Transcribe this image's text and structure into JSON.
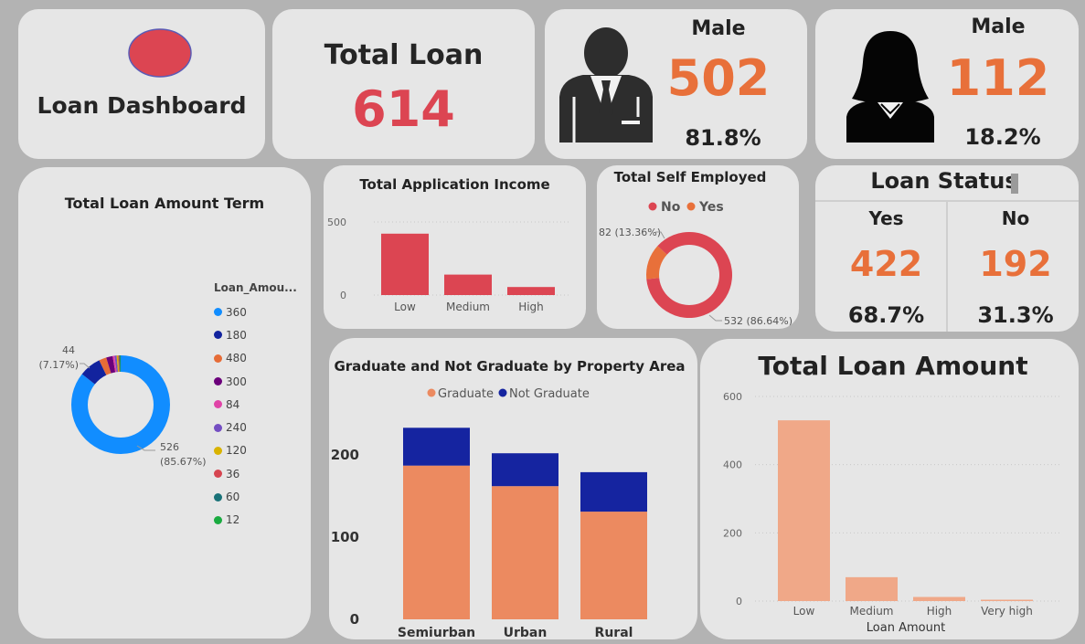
{
  "header": {
    "title": "Loan Dashboard",
    "logo_color": "#dc4552",
    "logo_border": "#5b5bb5"
  },
  "total_loan": {
    "label": "Total Loan",
    "value": "614"
  },
  "gender_male": {
    "label": "Male",
    "count": "502",
    "percent": "81.8%",
    "icon": "man-silhouette-icon"
  },
  "gender_female": {
    "label": "Male",
    "count": "112",
    "percent": "18.2%",
    "icon": "woman-silhouette-icon"
  },
  "loan_status": {
    "title": "Loan Status",
    "yes_label": "Yes",
    "yes_count": "422",
    "yes_percent": "68.7%",
    "no_label": "No",
    "no_count": "192",
    "no_percent": "31.3%"
  },
  "colors": {
    "red": "#dc4552",
    "orange": "#e8703a",
    "salmon": "#f0a888",
    "navy": "#1524a0",
    "graduate": "#ec8a60",
    "blue": "#118dff"
  },
  "chart_data": [
    {
      "id": "term",
      "type": "pie",
      "title": "Total Loan Amount Term",
      "legend_title": "Loan_Amou...",
      "legend_position": "right",
      "slices": [
        {
          "label": "360",
          "value": 526,
          "color": "#118dff"
        },
        {
          "label": "180",
          "value": 44,
          "color": "#12239e"
        },
        {
          "label": "480",
          "value": 15,
          "color": "#e66c37"
        },
        {
          "label": "300",
          "value": 13,
          "color": "#6b007b"
        },
        {
          "label": "84",
          "value": 4,
          "color": "#e044a7"
        },
        {
          "label": "240",
          "value": 4,
          "color": "#744ec2"
        },
        {
          "label": "120",
          "value": 3,
          "color": "#d9b300"
        },
        {
          "label": "36",
          "value": 2,
          "color": "#d64550"
        },
        {
          "label": "60",
          "value": 2,
          "color": "#197278"
        },
        {
          "label": "12",
          "value": 1,
          "color": "#1aab40"
        }
      ],
      "annotations": [
        {
          "line1": "44",
          "line2": "(7.17%)"
        },
        {
          "line1": "526",
          "line2": "(85.67%)"
        }
      ]
    },
    {
      "id": "income",
      "type": "bar",
      "title": "Total Application Income",
      "categories": [
        "Low",
        "Medium",
        "High"
      ],
      "values": [
        420,
        140,
        55
      ],
      "ylim": [
        0,
        500
      ],
      "yticks": [
        "0",
        "500"
      ],
      "color": "#dc4552"
    },
    {
      "id": "self",
      "type": "pie",
      "title": "Total Self Employed",
      "legend_position": "top",
      "slices": [
        {
          "label": "No",
          "value": 532,
          "color": "#dc4552"
        },
        {
          "label": "Yes",
          "value": 82,
          "color": "#e8703a"
        }
      ],
      "annotations": [
        {
          "text": "82 (13.36%)"
        },
        {
          "text": "532 (86.64%)"
        }
      ]
    },
    {
      "id": "grad",
      "type": "bar",
      "stacked": true,
      "title": "Graduate and Not Graduate by Property Area",
      "categories": [
        "Semiurban",
        "Urban",
        "Rural"
      ],
      "series": [
        {
          "name": "Graduate",
          "values": [
            187,
            162,
            131
          ],
          "color": "#ec8a60"
        },
        {
          "name": "Not Graduate",
          "values": [
            46,
            40,
            48
          ],
          "color": "#1524a0"
        }
      ],
      "ylim": [
        0,
        250
      ],
      "yticks": [
        "0",
        "100",
        "200"
      ],
      "legend_position": "top"
    },
    {
      "id": "amount",
      "type": "bar",
      "title": "Total Loan Amount",
      "xlabel": "Loan Amount",
      "categories": [
        "Low",
        "Medium",
        "High",
        "Very high"
      ],
      "values": [
        530,
        70,
        12,
        4
      ],
      "ylim": [
        0,
        600
      ],
      "yticks": [
        "0",
        "200",
        "400",
        "600"
      ],
      "color": "#f0a888"
    }
  ]
}
